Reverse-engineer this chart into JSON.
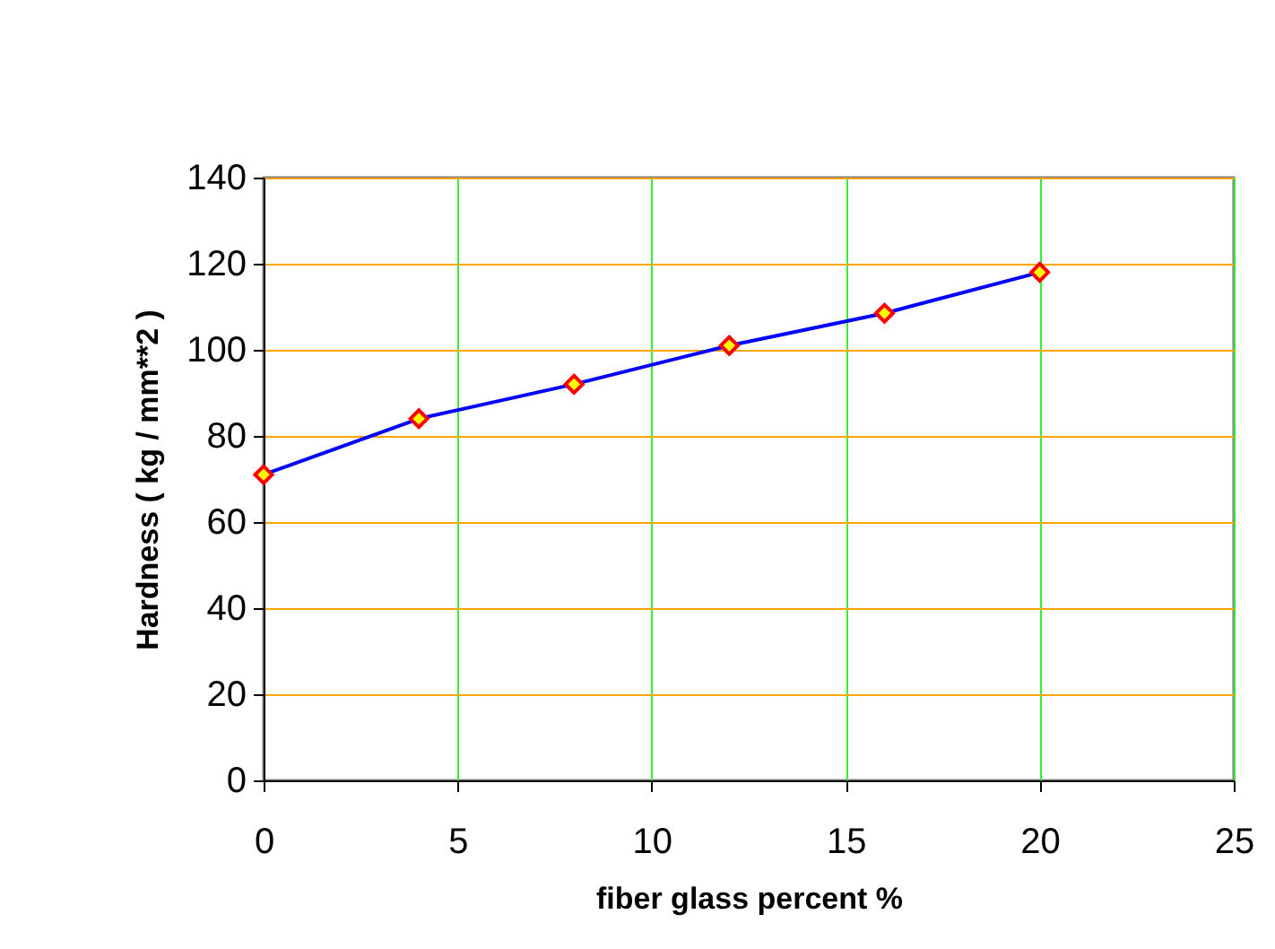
{
  "chart_data": {
    "type": "line",
    "xlabel": "fiber glass percent %",
    "ylabel": "Hardness ( kg / mm**2 )",
    "x": [
      0,
      4,
      8,
      12,
      16,
      20
    ],
    "series": [
      {
        "color": "#0000ff",
        "values": [
          71,
          84,
          92,
          101,
          108.5,
          118
        ]
      }
    ],
    "xlim": [
      0,
      25
    ],
    "xticks": [
      0,
      5,
      10,
      15,
      20,
      25
    ],
    "ylim": [
      0,
      140
    ],
    "yticks": [
      0,
      20,
      40,
      60,
      80,
      100,
      120,
      140
    ],
    "grid": true,
    "marker": "diamond",
    "line_style": "solid"
  }
}
